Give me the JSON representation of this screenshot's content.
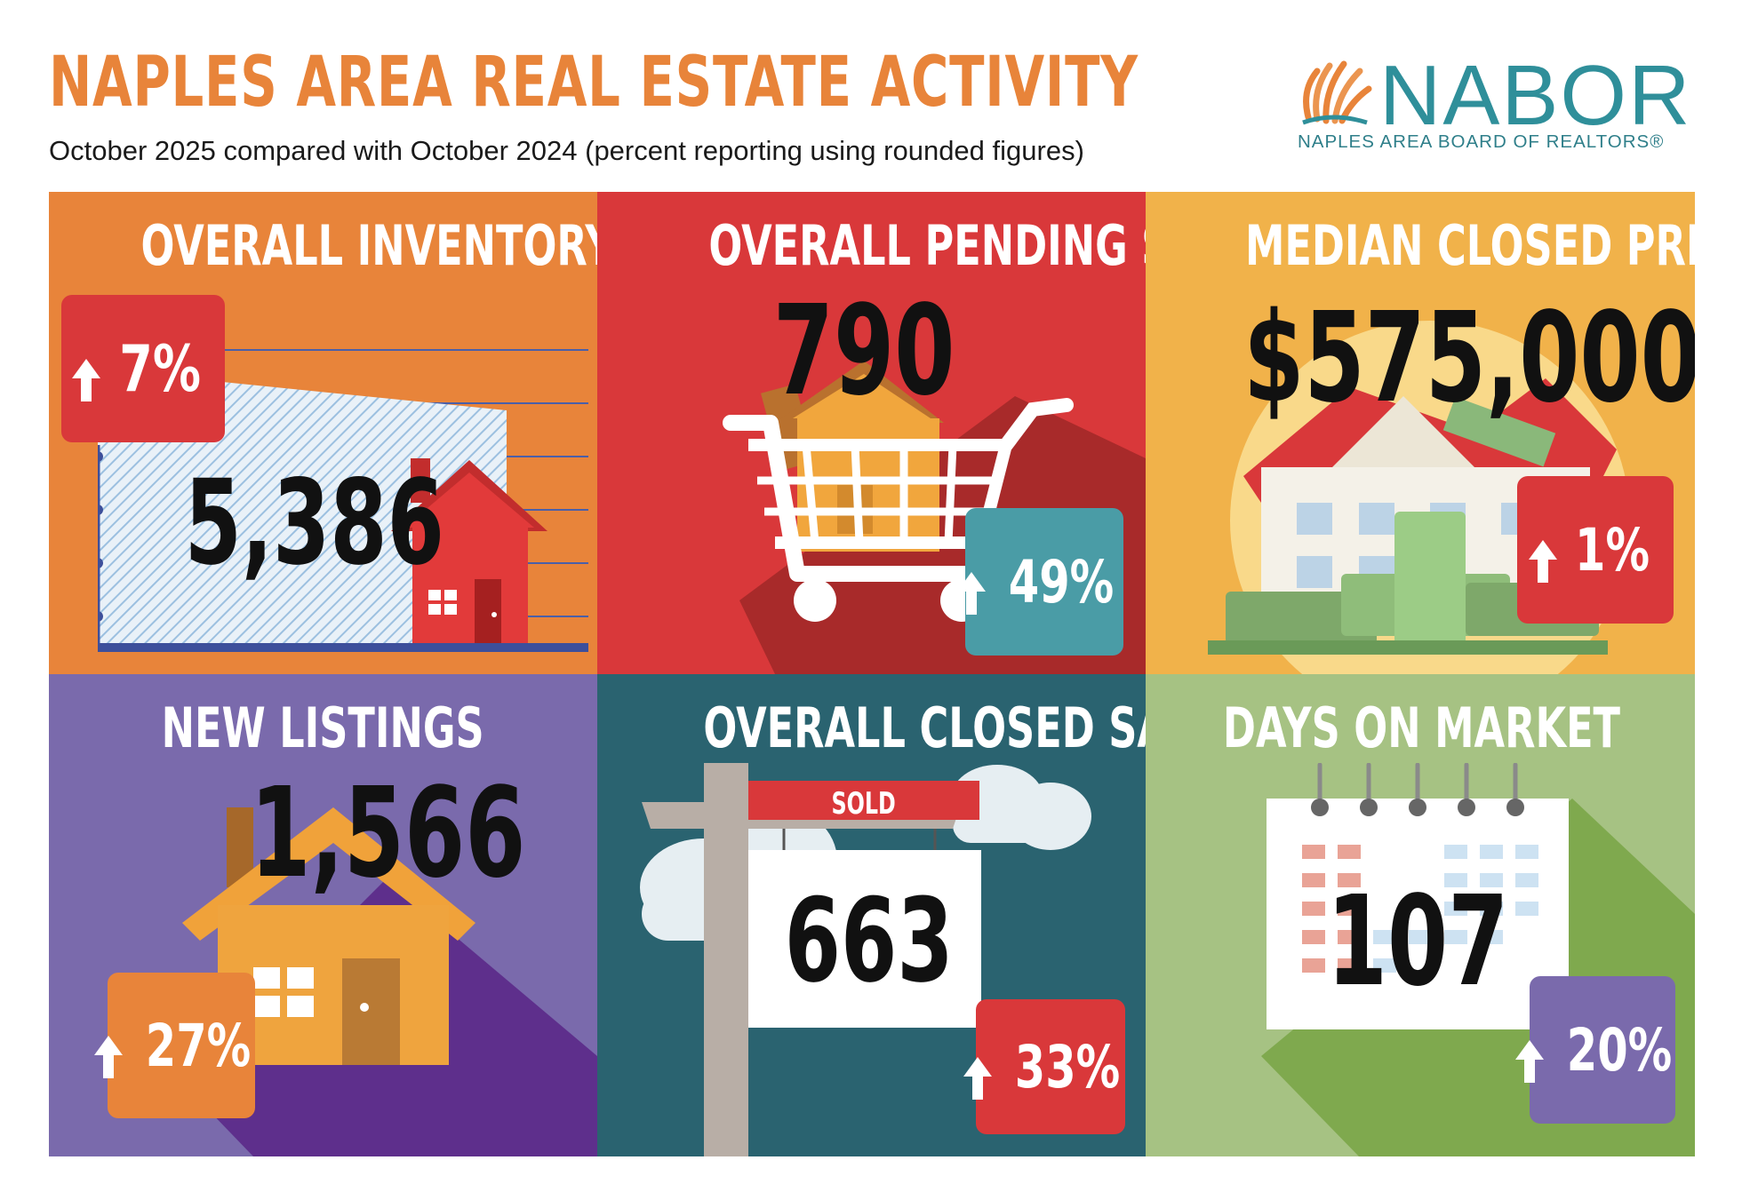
{
  "header": {
    "title": "NAPLES AREA REAL ESTATE ACTIVITY",
    "subtitle": "October 2025 compared with October 2024 (percent reporting using rounded figures)"
  },
  "logo": {
    "wordmark": "NABOR",
    "tagline": "NAPLES AREA BOARD OF REALTORS®"
  },
  "colors": {
    "title": "#e8843a",
    "inventory": "#e8843a",
    "pending": "#d9383a",
    "median": "#f1b24a",
    "new_listings": "#7a6aac",
    "closed": "#2a6370",
    "days": "#a6c283"
  },
  "panels": {
    "inventory": {
      "title": "OVERALL INVENTORY",
      "value": "5,386",
      "change": "7%",
      "direction": "up"
    },
    "pending": {
      "title": "OVERALL PENDING SALES",
      "value": "790",
      "change": "49%",
      "direction": "up"
    },
    "median": {
      "title": "MEDIAN CLOSED PRICE",
      "value": "$575,000",
      "change": "1%",
      "direction": "up"
    },
    "new_listings": {
      "title": "NEW LISTINGS",
      "value": "1,566",
      "change": "27%",
      "direction": "up"
    },
    "closed": {
      "title": "OVERALL CLOSED SALES",
      "value": "663",
      "change": "33%",
      "direction": "up",
      "sign_text": "SOLD"
    },
    "days": {
      "title": "DAYS ON MARKET",
      "value": "107",
      "change": "20%",
      "direction": "up"
    }
  },
  "icons": [
    "house-icon",
    "shopping-cart-icon",
    "money-house-icon",
    "sold-sign-icon",
    "calendar-icon",
    "up-arrow-icon"
  ]
}
